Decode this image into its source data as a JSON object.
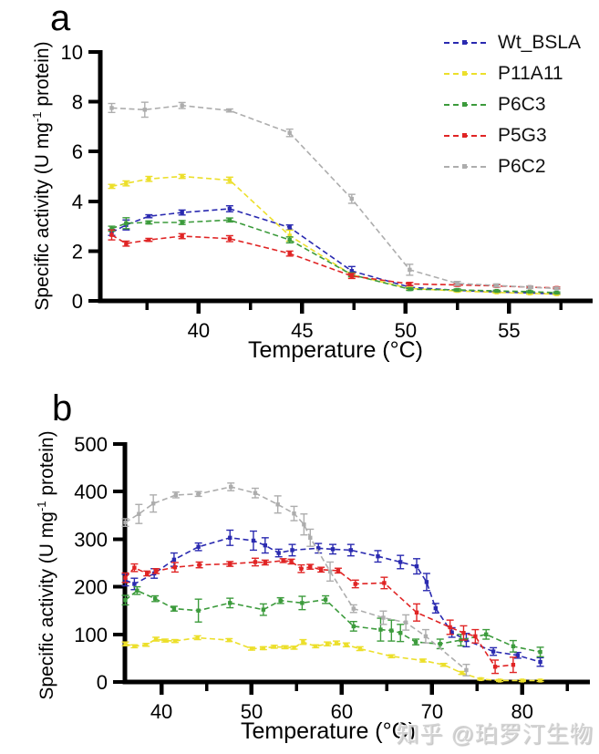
{
  "figure": {
    "panel_a_label": "a",
    "panel_b_label": "b",
    "watermark": "知乎 @珀罗汀生物"
  },
  "axis_labels": {
    "x": "Temperature (°C)",
    "y_pre": "Specific activity (U mg",
    "y_sup": "-1",
    "y_post": " protein)"
  },
  "legend": {
    "position": "top-right",
    "entries": [
      "Wt_BSLA",
      "P11A11",
      "P6C3",
      "P5G3",
      "P6C2"
    ]
  },
  "colors": {
    "Wt_BSLA": "#2a2ab0",
    "P11A11": "#ecdf2b",
    "P6C3": "#3c9b3c",
    "P5G3": "#e02424",
    "P6C2": "#adadad"
  },
  "chart_data": [
    {
      "panel": "a",
      "type": "line",
      "line_style": "dashed",
      "error_bars": true,
      "title": "",
      "xlabel": "Temperature (°C)",
      "ylabel": "Specific activity (U mg-1 protein)",
      "xlim": [
        35.25,
        58.95
      ],
      "ylim": [
        0,
        10
      ],
      "xticks": [
        40,
        45,
        50,
        55
      ],
      "xticks_minor": [
        37.5,
        42.5,
        47.5,
        52.5,
        57.5
      ],
      "yticks": [
        0,
        2,
        4,
        6,
        8,
        10
      ],
      "grid": false,
      "legend_position": "top-right",
      "series": [
        {
          "name": "Wt_BSLA",
          "color": "#2a2ab0",
          "x": [
            35.8,
            36.5,
            37.6,
            39.2,
            41.5,
            44.4,
            47.4,
            50.2,
            52.5,
            54.4,
            56,
            57.3
          ],
          "y": [
            2.75,
            3.05,
            3.4,
            3.55,
            3.7,
            2.95,
            1.2,
            0.55,
            0.42,
            0.36,
            0.32,
            0.28
          ],
          "err": [
            0.12,
            0.2,
            0.06,
            0.1,
            0.12,
            0.1,
            0.18,
            0.06,
            0.04,
            0.04,
            0.03,
            0.03
          ]
        },
        {
          "name": "P11A11",
          "color": "#ecdf2b",
          "x": [
            35.8,
            36.5,
            37.6,
            39.2,
            41.5,
            44.4,
            47.4,
            50.2,
            52.5,
            54.4,
            56,
            57.3
          ],
          "y": [
            4.6,
            4.72,
            4.9,
            5.0,
            4.85,
            2.62,
            1.05,
            0.5,
            0.4,
            0.34,
            0.3,
            0.27
          ],
          "err": [
            0.08,
            0.1,
            0.1,
            0.08,
            0.12,
            0.22,
            0.08,
            0.05,
            0.04,
            0.03,
            0.03,
            0.03
          ]
        },
        {
          "name": "P6C3",
          "color": "#3c9b3c",
          "x": [
            35.8,
            36.5,
            37.6,
            39.2,
            41.5,
            44.4,
            47.4,
            50.2,
            52.5,
            54.4,
            56,
            57.3
          ],
          "y": [
            2.9,
            3.12,
            3.15,
            3.15,
            3.25,
            2.45,
            1.05,
            0.47,
            0.44,
            0.4,
            0.37,
            0.33
          ],
          "err": [
            0.1,
            0.22,
            0.06,
            0.08,
            0.08,
            0.12,
            0.08,
            0.05,
            0.04,
            0.03,
            0.03,
            0.03
          ]
        },
        {
          "name": "P5G3",
          "color": "#e02424",
          "x": [
            35.8,
            36.5,
            37.6,
            39.2,
            41.5,
            44.4,
            47.4,
            50.2,
            52.5,
            54.4,
            56,
            57.3
          ],
          "y": [
            2.65,
            2.3,
            2.45,
            2.6,
            2.5,
            1.9,
            1.0,
            0.68,
            0.64,
            0.6,
            0.55,
            0.52
          ],
          "err": [
            0.2,
            0.1,
            0.06,
            0.1,
            0.12,
            0.1,
            0.1,
            0.06,
            0.05,
            0.05,
            0.04,
            0.04
          ]
        },
        {
          "name": "P6C2",
          "color": "#adadad",
          "x": [
            35.8,
            37.4,
            39.2,
            41.5,
            44.4,
            47.4,
            50.2,
            52.5,
            54.4,
            56,
            57.3
          ],
          "y": [
            7.75,
            7.68,
            7.85,
            7.65,
            6.75,
            4.1,
            1.25,
            0.7,
            0.62,
            0.55,
            0.5
          ],
          "err": [
            0.18,
            0.3,
            0.12,
            0.06,
            0.15,
            0.18,
            0.22,
            0.08,
            0.06,
            0.05,
            0.04
          ]
        }
      ]
    },
    {
      "panel": "b",
      "type": "line",
      "line_style": "dashed",
      "error_bars": true,
      "title": "",
      "xlabel": "Temperature (°C)",
      "ylabel": "Specific activity (U mg-1 protein)",
      "xlim": [
        35.95,
        87.3
      ],
      "ylim": [
        0,
        500
      ],
      "xticks": [
        40,
        50,
        60,
        70,
        80
      ],
      "xticks_minor": [
        45,
        55,
        65,
        75,
        85
      ],
      "yticks": [
        0,
        100,
        200,
        300,
        400,
        500
      ],
      "grid": false,
      "legend_position": "none",
      "series": [
        {
          "name": "Wt_BSLA",
          "color": "#2a2ab0",
          "x": [
            36,
            37,
            39.2,
            41.4,
            44.1,
            47.6,
            50.2,
            51.5,
            53,
            54.5,
            57.4,
            59,
            61,
            64,
            66.5,
            68.3,
            69.4,
            70.4,
            72.2,
            73.8,
            76.8,
            79.5,
            82
          ],
          "y": [
            214,
            206,
            228,
            257,
            284,
            303,
            297,
            287,
            271,
            277,
            281,
            279,
            277,
            264,
            252,
            243,
            210,
            155,
            104,
            88,
            64,
            56,
            42
          ],
          "err": [
            12,
            12,
            10,
            14,
            8,
            16,
            20,
            16,
            8,
            12,
            10,
            10,
            12,
            12,
            14,
            16,
            18,
            10,
            10,
            14,
            8,
            6,
            9
          ]
        },
        {
          "name": "P11A11",
          "color": "#ecdf2b",
          "x": [
            36,
            37,
            38.3,
            39.4,
            40.4,
            41.5,
            44,
            47.5,
            50,
            51.3,
            52.5,
            53.7,
            54.7,
            55.7,
            57.1,
            58.4,
            59.4,
            60.5,
            62,
            65.5,
            69,
            71.3,
            73.3,
            75.4,
            77.5,
            80,
            82
          ],
          "y": [
            80,
            75,
            78,
            90,
            87,
            86,
            93,
            88,
            70,
            71,
            74,
            73,
            72,
            84,
            75,
            80,
            82,
            78,
            70,
            54,
            45,
            36,
            19,
            6,
            3,
            3,
            3
          ],
          "err": [
            4,
            3,
            3,
            4,
            3,
            3,
            4,
            3,
            3,
            3,
            3,
            3,
            3,
            5,
            3,
            4,
            4,
            4,
            4,
            3,
            3,
            3,
            3,
            2,
            2,
            2,
            2
          ]
        },
        {
          "name": "P6C3",
          "color": "#3c9b3c",
          "x": [
            36,
            37.3,
            39.3,
            41.4,
            44.1,
            47.6,
            51.3,
            53.2,
            55.6,
            58.2,
            61.3,
            64.3,
            65.5,
            66.5,
            68.2,
            70.9,
            73.2,
            76,
            79,
            82
          ],
          "y": [
            172,
            192,
            175,
            154,
            150,
            166,
            152,
            171,
            166,
            173,
            117,
            110,
            108,
            103,
            84,
            80,
            88,
            100,
            75,
            63
          ],
          "err": [
            10,
            8,
            6,
            5,
            24,
            10,
            12,
            6,
            14,
            8,
            10,
            24,
            22,
            18,
            6,
            10,
            12,
            10,
            12,
            10
          ]
        },
        {
          "name": "P5G3",
          "color": "#e02424",
          "x": [
            36,
            37,
            38.4,
            39.4,
            41.5,
            44.2,
            47.6,
            50.4,
            51.5,
            53.5,
            54.4,
            55.5,
            56.5,
            57.7,
            59.6,
            61.5,
            64.7,
            68.3,
            72,
            73.5,
            74.8,
            77,
            79
          ],
          "y": [
            219,
            240,
            228,
            233,
            241,
            246,
            248,
            252,
            251,
            255,
            253,
            238,
            242,
            236,
            234,
            206,
            208,
            146,
            115,
            103,
            96,
            32,
            36
          ],
          "err": [
            10,
            8,
            5,
            5,
            10,
            6,
            5,
            8,
            5,
            4,
            5,
            8,
            5,
            5,
            5,
            8,
            12,
            18,
            15,
            15,
            14,
            14,
            16
          ]
        },
        {
          "name": "P6C2",
          "color": "#adadad",
          "x": [
            36,
            37.5,
            39.1,
            41.6,
            44.1,
            47.7,
            50.4,
            52.9,
            54.7,
            55.8,
            56.5,
            58.7,
            61.3,
            64.6,
            67.1,
            69.3,
            73.8
          ],
          "y": [
            335,
            353,
            375,
            393,
            395,
            410,
            397,
            373,
            354,
            331,
            303,
            232,
            154,
            135,
            125,
            96,
            25
          ],
          "err": [
            8,
            20,
            18,
            6,
            5,
            8,
            10,
            18,
            15,
            22,
            18,
            20,
            8,
            14,
            16,
            14,
            12
          ]
        }
      ]
    }
  ]
}
